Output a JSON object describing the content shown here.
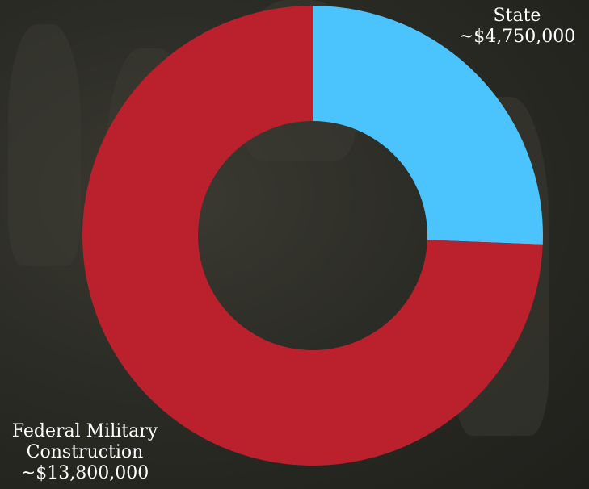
{
  "chart_data": {
    "type": "pie",
    "donut": true,
    "title": "",
    "slices": [
      {
        "name": "State",
        "value": 4750000,
        "value_label": "~$4,750,000",
        "color": "#4bc3fc"
      },
      {
        "name": "Federal Military Construction",
        "value": 13800000,
        "value_label": "~$13,800,000",
        "color": "#bb202d"
      }
    ],
    "legend": "none"
  },
  "labels": {
    "state_line1": "State",
    "state_line2": "~$4,750,000",
    "federal_line1": "Federal Military",
    "federal_line2": "Construction",
    "federal_line3": "~$13,800,000"
  },
  "colors": {
    "background": "#2c2c26",
    "hole": "#2b2a24"
  }
}
